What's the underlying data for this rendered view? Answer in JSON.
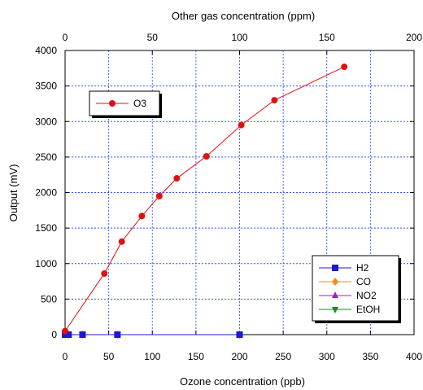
{
  "chart_data": {
    "type": "line",
    "title": "",
    "xlabel": "Ozone concentration (ppb)",
    "ylabel": "Output (mV)",
    "x2label": "Other gas concentration (ppm)",
    "xlim": [
      0,
      400
    ],
    "ylim": [
      0,
      4000
    ],
    "x2lim": [
      0,
      200
    ],
    "xticks": [
      0,
      50,
      100,
      150,
      200,
      250,
      300,
      350,
      400
    ],
    "yticks": [
      0,
      500,
      1000,
      1500,
      2000,
      2500,
      3000,
      3500,
      4000
    ],
    "x2ticks": [
      0,
      50,
      100,
      150,
      200
    ],
    "grid": true,
    "series": [
      {
        "name": "O3",
        "axis": "bottom",
        "color": "#dd1111",
        "marker": "circle",
        "x": [
          0,
          45,
          65,
          88,
          108,
          128,
          162,
          202,
          240,
          320
        ],
        "y": [
          50,
          860,
          1310,
          1670,
          1950,
          2200,
          2510,
          2950,
          3300,
          3770
        ]
      },
      {
        "name": "H2",
        "axis": "top",
        "color": "#1a1ad0",
        "marker": "square",
        "x": [
          0,
          2,
          10,
          30,
          100
        ],
        "y": [
          0,
          0,
          0,
          0,
          0
        ]
      },
      {
        "name": "CO",
        "axis": "top",
        "color": "#f28a1a",
        "marker": "diamond",
        "x": [
          0,
          2,
          10,
          30,
          100
        ],
        "y": [
          0,
          0,
          0,
          0,
          0
        ]
      },
      {
        "name": "NO2",
        "axis": "top",
        "color": "#a020c0",
        "marker": "triangle-up",
        "x": [
          0,
          2,
          10,
          30,
          100
        ],
        "y": [
          0,
          0,
          0,
          0,
          0
        ]
      },
      {
        "name": "EtOH",
        "axis": "top",
        "color": "#1a8a1a",
        "marker": "triangle-down",
        "x": [
          0,
          2,
          10,
          30,
          100
        ],
        "y": [
          0,
          0,
          0,
          0,
          0
        ]
      }
    ],
    "legends": [
      {
        "placement": "top-left",
        "entries": [
          "O3"
        ]
      },
      {
        "placement": "bottom-right",
        "entries": [
          "H2",
          "CO",
          "NO2",
          "EtOH"
        ]
      }
    ]
  }
}
